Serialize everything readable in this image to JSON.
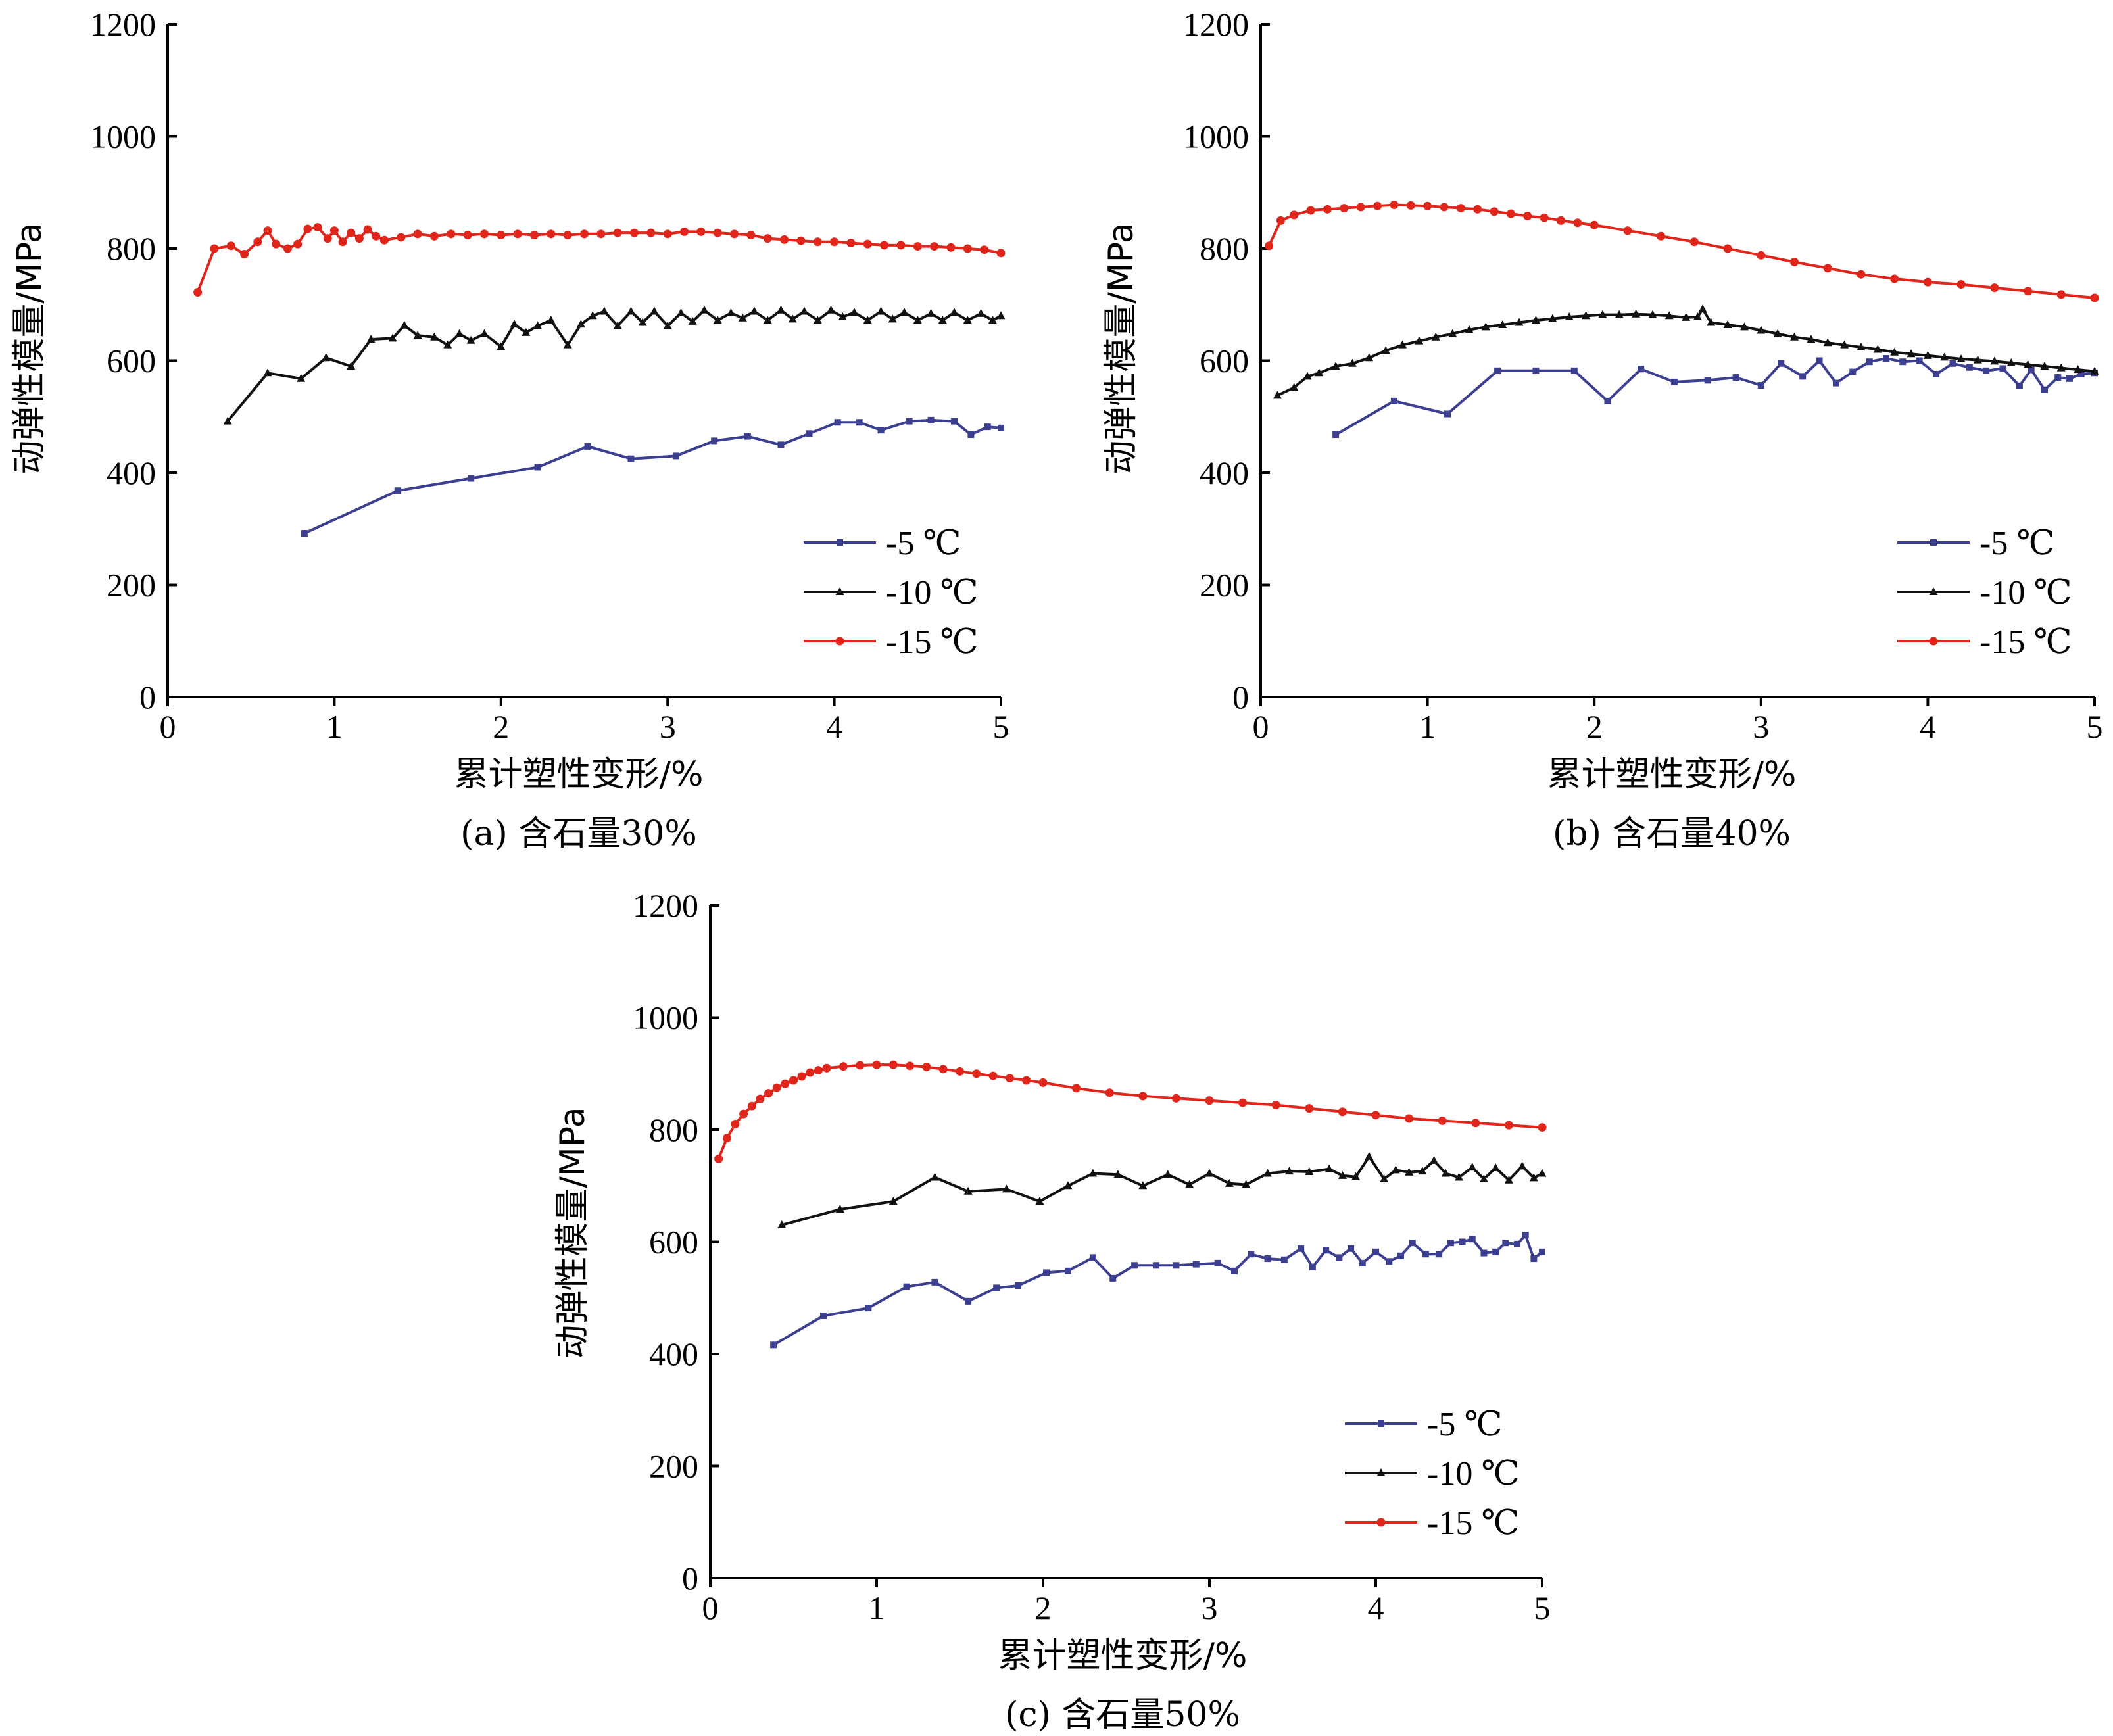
{
  "figure": {
    "colors": {
      "-5": "#3c3f8f",
      "-10": "#111111",
      "-15": "#e0251b"
    }
  },
  "chart_data": [
    {
      "type": "line",
      "caption": "(a) 含石量30%",
      "xlabel": "累计塑性变形/%",
      "ylabel": "动弹性模量/MPa",
      "xlim": [
        0,
        5
      ],
      "ylim": [
        0,
        1200
      ],
      "xticks": [
        0,
        1,
        2,
        3,
        4,
        5
      ],
      "yticks": [
        0,
        200,
        400,
        600,
        800,
        1000,
        1200
      ],
      "legend_position": "bottom-right",
      "series": [
        {
          "name": "-5 ℃",
          "marker": "square",
          "color": "#3c3f8f",
          "x": [
            0.82,
            1.38,
            1.82,
            2.22,
            2.52,
            2.78,
            3.05,
            3.28,
            3.48,
            3.68,
            3.85,
            4.02,
            4.15,
            4.28,
            4.45,
            4.58,
            4.72,
            4.82,
            4.92,
            5.0
          ],
          "y": [
            292,
            368,
            390,
            410,
            447,
            425,
            430,
            457,
            465,
            450,
            470,
            490,
            490,
            476,
            492,
            494,
            492,
            468,
            482,
            480
          ]
        },
        {
          "name": "-10 ℃",
          "marker": "triangle",
          "color": "#111111",
          "x": [
            0.36,
            0.6,
            0.8,
            0.95,
            1.1,
            1.22,
            1.35,
            1.42,
            1.5,
            1.6,
            1.68,
            1.75,
            1.82,
            1.9,
            2.0,
            2.08,
            2.15,
            2.22,
            2.3,
            2.4,
            2.48,
            2.55,
            2.62,
            2.7,
            2.78,
            2.85,
            2.92,
            3.0,
            3.08,
            3.15,
            3.22,
            3.3,
            3.38,
            3.45,
            3.52,
            3.6,
            3.68,
            3.75,
            3.82,
            3.9,
            3.98,
            4.05,
            4.12,
            4.2,
            4.28,
            4.35,
            4.42,
            4.5,
            4.58,
            4.65,
            4.72,
            4.8,
            4.88,
            4.95,
            5.0
          ],
          "y": [
            492,
            578,
            568,
            605,
            590,
            638,
            640,
            663,
            645,
            642,
            628,
            648,
            636,
            648,
            625,
            665,
            650,
            662,
            672,
            628,
            665,
            680,
            688,
            662,
            688,
            668,
            688,
            662,
            685,
            670,
            690,
            672,
            685,
            676,
            688,
            672,
            690,
            674,
            688,
            672,
            690,
            678,
            686,
            672,
            688,
            674,
            686,
            672,
            684,
            672,
            686,
            672,
            684,
            672,
            680
          ]
        },
        {
          "name": "-15 ℃",
          "marker": "circle",
          "color": "#e0251b",
          "x": [
            0.18,
            0.28,
            0.38,
            0.46,
            0.54,
            0.6,
            0.65,
            0.72,
            0.78,
            0.84,
            0.9,
            0.96,
            1.0,
            1.05,
            1.1,
            1.15,
            1.2,
            1.25,
            1.3,
            1.4,
            1.5,
            1.6,
            1.7,
            1.8,
            1.9,
            2.0,
            2.1,
            2.2,
            2.3,
            2.4,
            2.5,
            2.6,
            2.7,
            2.8,
            2.9,
            3.0,
            3.1,
            3.2,
            3.3,
            3.4,
            3.5,
            3.6,
            3.7,
            3.8,
            3.9,
            4.0,
            4.1,
            4.2,
            4.3,
            4.4,
            4.5,
            4.6,
            4.7,
            4.8,
            4.9,
            5.0
          ],
          "y": [
            722,
            800,
            805,
            790,
            812,
            832,
            808,
            800,
            808,
            835,
            838,
            818,
            832,
            812,
            828,
            818,
            834,
            822,
            815,
            820,
            826,
            822,
            826,
            824,
            826,
            824,
            826,
            824,
            826,
            824,
            826,
            826,
            828,
            828,
            828,
            826,
            830,
            830,
            828,
            826,
            824,
            818,
            816,
            814,
            812,
            812,
            810,
            808,
            806,
            806,
            804,
            804,
            802,
            800,
            798,
            792
          ]
        }
      ]
    },
    {
      "type": "line",
      "caption": "(b) 含石量40%",
      "xlabel": "累计塑性变形/%",
      "ylabel": "动弹性模量/MPa",
      "xlim": [
        0,
        5
      ],
      "ylim": [
        0,
        1200
      ],
      "xticks": [
        0,
        1,
        2,
        3,
        4,
        5
      ],
      "yticks": [
        0,
        200,
        400,
        600,
        800,
        1000,
        1200
      ],
      "legend_position": "bottom-right",
      "series": [
        {
          "name": "-5 ℃",
          "marker": "square",
          "color": "#3c3f8f",
          "x": [
            0.45,
            0.8,
            1.12,
            1.42,
            1.65,
            1.88,
            2.08,
            2.28,
            2.48,
            2.68,
            2.85,
            3.0,
            3.12,
            3.25,
            3.35,
            3.45,
            3.55,
            3.65,
            3.75,
            3.85,
            3.95,
            4.05,
            4.15,
            4.25,
            4.35,
            4.45,
            4.55,
            4.62,
            4.7,
            4.78,
            4.85,
            4.92,
            5.0
          ],
          "y": [
            468,
            528,
            505,
            582,
            582,
            582,
            528,
            585,
            562,
            565,
            570,
            556,
            595,
            572,
            600,
            560,
            580,
            598,
            604,
            598,
            600,
            576,
            595,
            588,
            582,
            586,
            555,
            584,
            548,
            570,
            568,
            576,
            578
          ]
        },
        {
          "name": "-10 ℃",
          "marker": "triangle",
          "color": "#111111",
          "x": [
            0.1,
            0.2,
            0.28,
            0.35,
            0.45,
            0.55,
            0.65,
            0.75,
            0.85,
            0.95,
            1.05,
            1.15,
            1.25,
            1.35,
            1.45,
            1.55,
            1.65,
            1.75,
            1.85,
            1.95,
            2.05,
            2.15,
            2.25,
            2.35,
            2.45,
            2.55,
            2.62,
            2.65,
            2.7,
            2.8,
            2.9,
            3.0,
            3.1,
            3.2,
            3.3,
            3.4,
            3.5,
            3.6,
            3.7,
            3.8,
            3.9,
            4.0,
            4.1,
            4.2,
            4.3,
            4.4,
            4.5,
            4.6,
            4.7,
            4.8,
            4.9,
            5.0
          ],
          "y": [
            538,
            552,
            572,
            578,
            590,
            595,
            605,
            618,
            628,
            635,
            642,
            648,
            655,
            660,
            664,
            668,
            672,
            675,
            678,
            680,
            682,
            682,
            683,
            682,
            680,
            677,
            678,
            692,
            668,
            664,
            660,
            654,
            648,
            642,
            638,
            632,
            628,
            624,
            620,
            615,
            612,
            609,
            606,
            603,
            601,
            599,
            596,
            593,
            590,
            587,
            584,
            581
          ]
        },
        {
          "name": "-15 ℃",
          "marker": "circle",
          "color": "#e0251b",
          "x": [
            0.05,
            0.12,
            0.2,
            0.3,
            0.4,
            0.5,
            0.6,
            0.7,
            0.8,
            0.9,
            1.0,
            1.1,
            1.2,
            1.3,
            1.4,
            1.5,
            1.6,
            1.7,
            1.8,
            1.9,
            2.0,
            2.2,
            2.4,
            2.6,
            2.8,
            3.0,
            3.2,
            3.4,
            3.6,
            3.8,
            4.0,
            4.2,
            4.4,
            4.6,
            4.8,
            5.0
          ],
          "y": [
            805,
            850,
            860,
            868,
            870,
            872,
            874,
            876,
            878,
            877,
            876,
            874,
            872,
            870,
            866,
            862,
            858,
            855,
            850,
            846,
            842,
            832,
            822,
            812,
            800,
            788,
            776,
            765,
            754,
            746,
            740,
            736,
            730,
            724,
            718,
            712
          ]
        }
      ]
    },
    {
      "type": "line",
      "caption": "(c) 含石量50%",
      "xlabel": "累计塑性变形/%",
      "ylabel": "动弹性模量/MPa",
      "xlim": [
        0,
        5
      ],
      "ylim": [
        0,
        1200
      ],
      "xticks": [
        0,
        1,
        2,
        3,
        4,
        5
      ],
      "yticks": [
        0,
        200,
        400,
        600,
        800,
        1000,
        1200
      ],
      "legend_position": "bottom-right",
      "series": [
        {
          "name": "-5 ℃",
          "marker": "square",
          "color": "#3c3f8f",
          "x": [
            0.38,
            0.68,
            0.95,
            1.18,
            1.35,
            1.55,
            1.72,
            1.85,
            2.02,
            2.15,
            2.3,
            2.42,
            2.55,
            2.68,
            2.8,
            2.92,
            3.05,
            3.15,
            3.25,
            3.35,
            3.45,
            3.55,
            3.62,
            3.7,
            3.78,
            3.85,
            3.92,
            4.0,
            4.08,
            4.15,
            4.22,
            4.3,
            4.38,
            4.45,
            4.52,
            4.58,
            4.65,
            4.72,
            4.78,
            4.85,
            4.9,
            4.95,
            5.0
          ],
          "y": [
            416,
            468,
            482,
            520,
            528,
            494,
            518,
            522,
            545,
            548,
            572,
            535,
            558,
            558,
            558,
            560,
            562,
            548,
            578,
            570,
            568,
            588,
            555,
            585,
            572,
            588,
            562,
            582,
            565,
            575,
            598,
            578,
            578,
            598,
            600,
            605,
            580,
            582,
            598,
            596,
            612,
            570,
            582
          ]
        },
        {
          "name": "-10 ℃",
          "marker": "triangle",
          "color": "#111111",
          "x": [
            0.43,
            0.78,
            1.1,
            1.35,
            1.55,
            1.78,
            1.98,
            2.15,
            2.3,
            2.45,
            2.6,
            2.75,
            2.88,
            3.0,
            3.12,
            3.22,
            3.35,
            3.48,
            3.6,
            3.72,
            3.8,
            3.88,
            3.96,
            4.05,
            4.12,
            4.2,
            4.28,
            4.35,
            4.42,
            4.5,
            4.58,
            4.65,
            4.72,
            4.8,
            4.88,
            4.95,
            5.0
          ],
          "y": [
            630,
            658,
            672,
            715,
            690,
            694,
            672,
            700,
            722,
            720,
            700,
            720,
            702,
            722,
            704,
            702,
            722,
            726,
            725,
            730,
            718,
            716,
            752,
            712,
            728,
            724,
            726,
            745,
            722,
            715,
            733,
            712,
            732,
            710,
            735,
            714,
            722
          ]
        },
        {
          "name": "-15 ℃",
          "marker": "circle",
          "color": "#e0251b",
          "x": [
            0.05,
            0.1,
            0.15,
            0.2,
            0.25,
            0.3,
            0.35,
            0.4,
            0.45,
            0.5,
            0.55,
            0.6,
            0.65,
            0.7,
            0.8,
            0.9,
            1.0,
            1.1,
            1.2,
            1.3,
            1.4,
            1.5,
            1.6,
            1.7,
            1.8,
            1.9,
            2.0,
            2.2,
            2.4,
            2.6,
            2.8,
            3.0,
            3.2,
            3.4,
            3.6,
            3.8,
            4.0,
            4.2,
            4.4,
            4.6,
            4.8,
            5.0
          ],
          "y": [
            748,
            785,
            810,
            828,
            842,
            855,
            865,
            875,
            882,
            888,
            895,
            902,
            906,
            910,
            913,
            915,
            916,
            916,
            914,
            912,
            908,
            904,
            900,
            896,
            892,
            888,
            884,
            874,
            866,
            860,
            856,
            852,
            848,
            844,
            838,
            832,
            826,
            820,
            816,
            812,
            808,
            804
          ]
        }
      ]
    }
  ]
}
